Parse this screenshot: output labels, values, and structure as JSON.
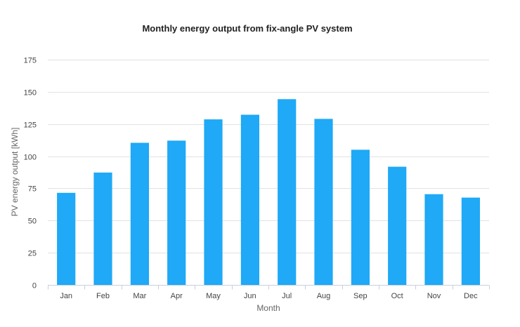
{
  "chart_data": {
    "type": "bar",
    "title": "Monthly energy output from fix-angle PV system",
    "xlabel": "Month",
    "ylabel": "PV energy output [kWh]",
    "categories": [
      "Jan",
      "Feb",
      "Mar",
      "Apr",
      "May",
      "Jun",
      "Jul",
      "Aug",
      "Sep",
      "Oct",
      "Nov",
      "Dec"
    ],
    "values": [
      71.5,
      87.3,
      110.4,
      112.1,
      128.6,
      132.2,
      144.3,
      129.0,
      105.0,
      91.8,
      70.5,
      67.8
    ],
    "ylim": [
      0,
      175
    ],
    "yticks": [
      0,
      25,
      50,
      75,
      100,
      125,
      150,
      175
    ],
    "grid": true,
    "legend": "none",
    "bar_color": "#1fa9f6"
  }
}
